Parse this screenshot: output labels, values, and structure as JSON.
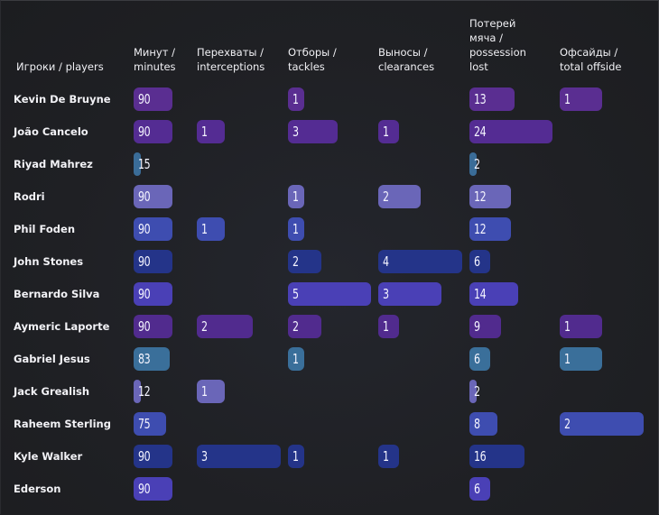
{
  "table": {
    "player_header": "Игроки / players",
    "columns": [
      {
        "key": "minutes",
        "label_lines": [
          "Минут /",
          "minutes"
        ],
        "max": 130
      },
      {
        "key": "interceptions",
        "label_lines": [
          "Перехваты /",
          "interceptions"
        ],
        "max": 3
      },
      {
        "key": "tackles",
        "label_lines": [
          "Отборы /",
          "tackles"
        ],
        "max": 5
      },
      {
        "key": "clearances",
        "label_lines": [
          "Выносы /",
          "clearances"
        ],
        "max": 4
      },
      {
        "key": "possession_lost",
        "label_lines": [
          "Потерей",
          "мяча /",
          "possession",
          "lost"
        ],
        "max": 24
      },
      {
        "key": "offside",
        "label_lines": [
          "Офсайды /",
          "total offside"
        ],
        "max": 2
      }
    ],
    "rows": [
      {
        "player": "Kevin De Bruyne",
        "color": "#5a2e91",
        "values": [
          90,
          null,
          1,
          null,
          13,
          1
        ]
      },
      {
        "player": "João Cancelo",
        "color": "#542c93",
        "values": [
          90,
          1,
          3,
          1,
          24,
          null
        ]
      },
      {
        "player": "Riyad Mahrez",
        "color": "#3a6c98",
        "values": [
          15,
          null,
          null,
          null,
          2,
          null
        ]
      },
      {
        "player": "Rodri",
        "color": "#6a66b8",
        "values": [
          90,
          null,
          1,
          2,
          12,
          null
        ]
      },
      {
        "player": "Phil Foden",
        "color": "#3e4db0",
        "values": [
          90,
          1,
          1,
          null,
          12,
          null
        ]
      },
      {
        "player": "John Stones",
        "color": "#243489",
        "values": [
          90,
          null,
          2,
          4,
          6,
          null
        ]
      },
      {
        "player": "Bernardo Silva",
        "color": "#4a40b6",
        "values": [
          90,
          null,
          5,
          3,
          14,
          null
        ]
      },
      {
        "player": "Aymeric Laporte",
        "color": "#512b8e",
        "values": [
          90,
          2,
          2,
          1,
          9,
          1
        ]
      },
      {
        "player": "Gabriel Jesus",
        "color": "#3a6f9a",
        "values": [
          83,
          null,
          1,
          null,
          6,
          1
        ]
      },
      {
        "player": "Jack Grealish",
        "color": "#6a66b8",
        "values": [
          12,
          1,
          null,
          null,
          2,
          null
        ]
      },
      {
        "player": "Raheem Sterling",
        "color": "#3e4db0",
        "values": [
          75,
          null,
          null,
          null,
          8,
          2
        ]
      },
      {
        "player": "Kyle Walker",
        "color": "#243489",
        "values": [
          90,
          3,
          1,
          1,
          16,
          null
        ]
      },
      {
        "player": "Ederson",
        "color": "#4a40b6",
        "values": [
          90,
          null,
          null,
          null,
          6,
          null
        ]
      }
    ]
  }
}
